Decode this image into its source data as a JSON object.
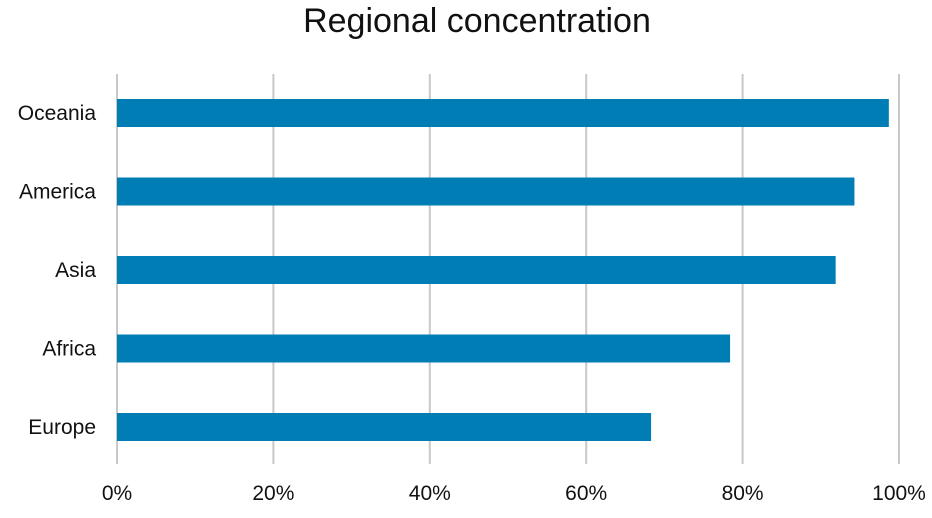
{
  "chart_data": {
    "type": "bar",
    "orientation": "horizontal",
    "title": "Regional concentration",
    "xlabel": "",
    "ylabel": "",
    "categories": [
      "Oceania",
      "America",
      "Asia",
      "Africa",
      "Europe"
    ],
    "values": [
      98.7,
      94.3,
      91.9,
      78.4,
      68.3
    ],
    "value_unit": "%",
    "xlim": [
      0,
      100
    ],
    "x_ticks": [
      "0%",
      "20%",
      "40%",
      "60%",
      "80%",
      "100%"
    ],
    "x_tick_values": [
      0,
      20,
      40,
      60,
      80,
      100
    ],
    "grid": "vertical",
    "legend": "none",
    "bar_color": "#007DB4",
    "grid_color": "#C8C8C8"
  }
}
